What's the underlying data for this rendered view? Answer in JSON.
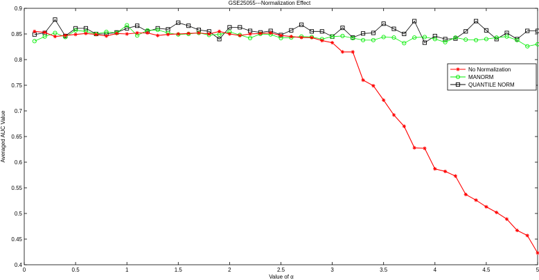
{
  "chart_data": {
    "type": "line",
    "title": "GSE25055---Normalization Effect",
    "xlabel": "Value of α",
    "ylabel": "Averaged AUC Value",
    "xlim": [
      0,
      5
    ],
    "ylim": [
      0.4,
      0.9
    ],
    "xticks": [
      0,
      0.5,
      1,
      1.5,
      2,
      2.5,
      3,
      3.5,
      4,
      4.5,
      5
    ],
    "xtick_labels": [
      "0",
      "0.5",
      "1",
      "1.5",
      "2",
      "2.5",
      "3",
      "3.5",
      "4",
      "4.5",
      "5"
    ],
    "yticks": [
      0.4,
      0.45,
      0.5,
      0.55,
      0.6,
      0.65,
      0.7,
      0.75,
      0.8,
      0.85,
      0.9
    ],
    "ytick_labels": [
      "0.4",
      "0.45",
      "0.5",
      "0.55",
      "0.6",
      "0.65",
      "0.7",
      "0.75",
      "0.8",
      "0.85",
      "0.9"
    ],
    "grid": false,
    "legend_position": "right",
    "x": [
      0.1,
      0.2,
      0.3,
      0.4,
      0.5,
      0.6,
      0.7,
      0.8,
      0.9,
      1.0,
      1.1,
      1.2,
      1.3,
      1.4,
      1.5,
      1.6,
      1.7,
      1.8,
      1.9,
      2.0,
      2.1,
      2.2,
      2.3,
      2.4,
      2.5,
      2.6,
      2.7,
      2.8,
      2.9,
      3.0,
      3.1,
      3.2,
      3.3,
      3.4,
      3.5,
      3.6,
      3.7,
      3.8,
      3.9,
      4.0,
      4.1,
      4.2,
      4.3,
      4.4,
      4.5,
      4.6,
      4.7,
      4.8,
      4.9,
      5.0
    ],
    "series": [
      {
        "name": "No Normalization",
        "color": "#ff0000",
        "marker": "star",
        "values": [
          0.855,
          0.853,
          0.845,
          0.847,
          0.849,
          0.851,
          0.849,
          0.846,
          0.851,
          0.85,
          0.852,
          0.852,
          0.847,
          0.849,
          0.85,
          0.851,
          0.852,
          0.85,
          0.855,
          0.85,
          0.847,
          0.85,
          0.851,
          0.852,
          0.847,
          0.845,
          0.843,
          0.843,
          0.837,
          0.833,
          0.815,
          0.815,
          0.76,
          0.749,
          0.721,
          0.692,
          0.67,
          0.628,
          0.627,
          0.587,
          0.582,
          0.573,
          0.537,
          0.526,
          0.513,
          0.502,
          0.489,
          0.467,
          0.457,
          0.423
        ]
      },
      {
        "name": "MANORM",
        "color": "#00ee00",
        "marker": "circle",
        "values": [
          0.836,
          0.845,
          0.852,
          0.844,
          0.857,
          0.855,
          0.85,
          0.854,
          0.852,
          0.867,
          0.847,
          0.857,
          0.858,
          0.852,
          0.849,
          0.85,
          0.852,
          0.848,
          0.849,
          0.854,
          0.848,
          0.842,
          0.85,
          0.849,
          0.842,
          0.843,
          0.845,
          0.844,
          0.84,
          0.845,
          0.846,
          0.842,
          0.838,
          0.838,
          0.844,
          0.843,
          0.832,
          0.843,
          0.844,
          0.84,
          0.834,
          0.843,
          0.839,
          0.838,
          0.84,
          0.843,
          0.845,
          0.838,
          0.826,
          0.83
        ]
      },
      {
        "name": "QUANTILE NORM",
        "color": "#000000",
        "marker": "square",
        "values": [
          0.849,
          0.852,
          0.878,
          0.846,
          0.861,
          0.861,
          0.85,
          0.85,
          0.853,
          0.861,
          0.866,
          0.855,
          0.861,
          0.859,
          0.872,
          0.866,
          0.858,
          0.855,
          0.84,
          0.863,
          0.863,
          0.856,
          0.853,
          0.856,
          0.848,
          0.857,
          0.868,
          0.855,
          0.855,
          0.845,
          0.862,
          0.843,
          0.851,
          0.852,
          0.87,
          0.86,
          0.85,
          0.875,
          0.833,
          0.846,
          0.84,
          0.841,
          0.855,
          0.875,
          0.857,
          0.84,
          0.852,
          0.84,
          0.856,
          0.856
        ]
      }
    ]
  }
}
